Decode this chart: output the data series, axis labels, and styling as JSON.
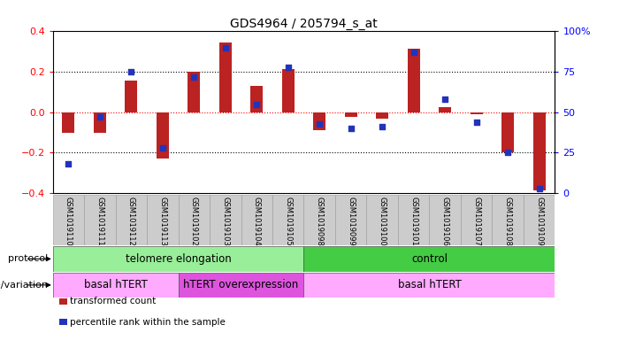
{
  "title": "GDS4964 / 205794_s_at",
  "samples": [
    "GSM1019110",
    "GSM1019111",
    "GSM1019112",
    "GSM1019113",
    "GSM1019102",
    "GSM1019103",
    "GSM1019104",
    "GSM1019105",
    "GSM1019098",
    "GSM1019099",
    "GSM1019100",
    "GSM1019101",
    "GSM1019106",
    "GSM1019107",
    "GSM1019108",
    "GSM1019109"
  ],
  "transformed_count": [
    -0.1,
    -0.1,
    0.155,
    -0.23,
    0.2,
    0.345,
    0.13,
    0.215,
    -0.09,
    -0.025,
    -0.03,
    0.315,
    0.025,
    -0.01,
    -0.2,
    -0.385
  ],
  "percentile_rank": [
    18,
    47,
    75,
    28,
    72,
    90,
    55,
    78,
    43,
    40,
    41,
    87,
    58,
    44,
    25,
    3
  ],
  "ylim_left": [
    -0.4,
    0.4
  ],
  "ylim_right": [
    0,
    100
  ],
  "bar_color": "#bb2222",
  "dot_color": "#2233bb",
  "protocol_groups": [
    {
      "label": "telomere elongation",
      "start": 0,
      "end": 8,
      "color": "#99ee99"
    },
    {
      "label": "control",
      "start": 8,
      "end": 16,
      "color": "#44cc44"
    }
  ],
  "genotype_groups": [
    {
      "label": "basal hTERT",
      "start": 0,
      "end": 4,
      "color": "#ffaaff"
    },
    {
      "label": "hTERT overexpression",
      "start": 4,
      "end": 8,
      "color": "#dd55dd"
    },
    {
      "label": "basal hTERT",
      "start": 8,
      "end": 16,
      "color": "#ffaaff"
    }
  ],
  "legend_items": [
    {
      "label": "transformed count",
      "color": "#bb2222"
    },
    {
      "label": "percentile rank within the sample",
      "color": "#2233bb"
    }
  ],
  "background_color": "#ffffff",
  "tick_area_color": "#cccccc"
}
